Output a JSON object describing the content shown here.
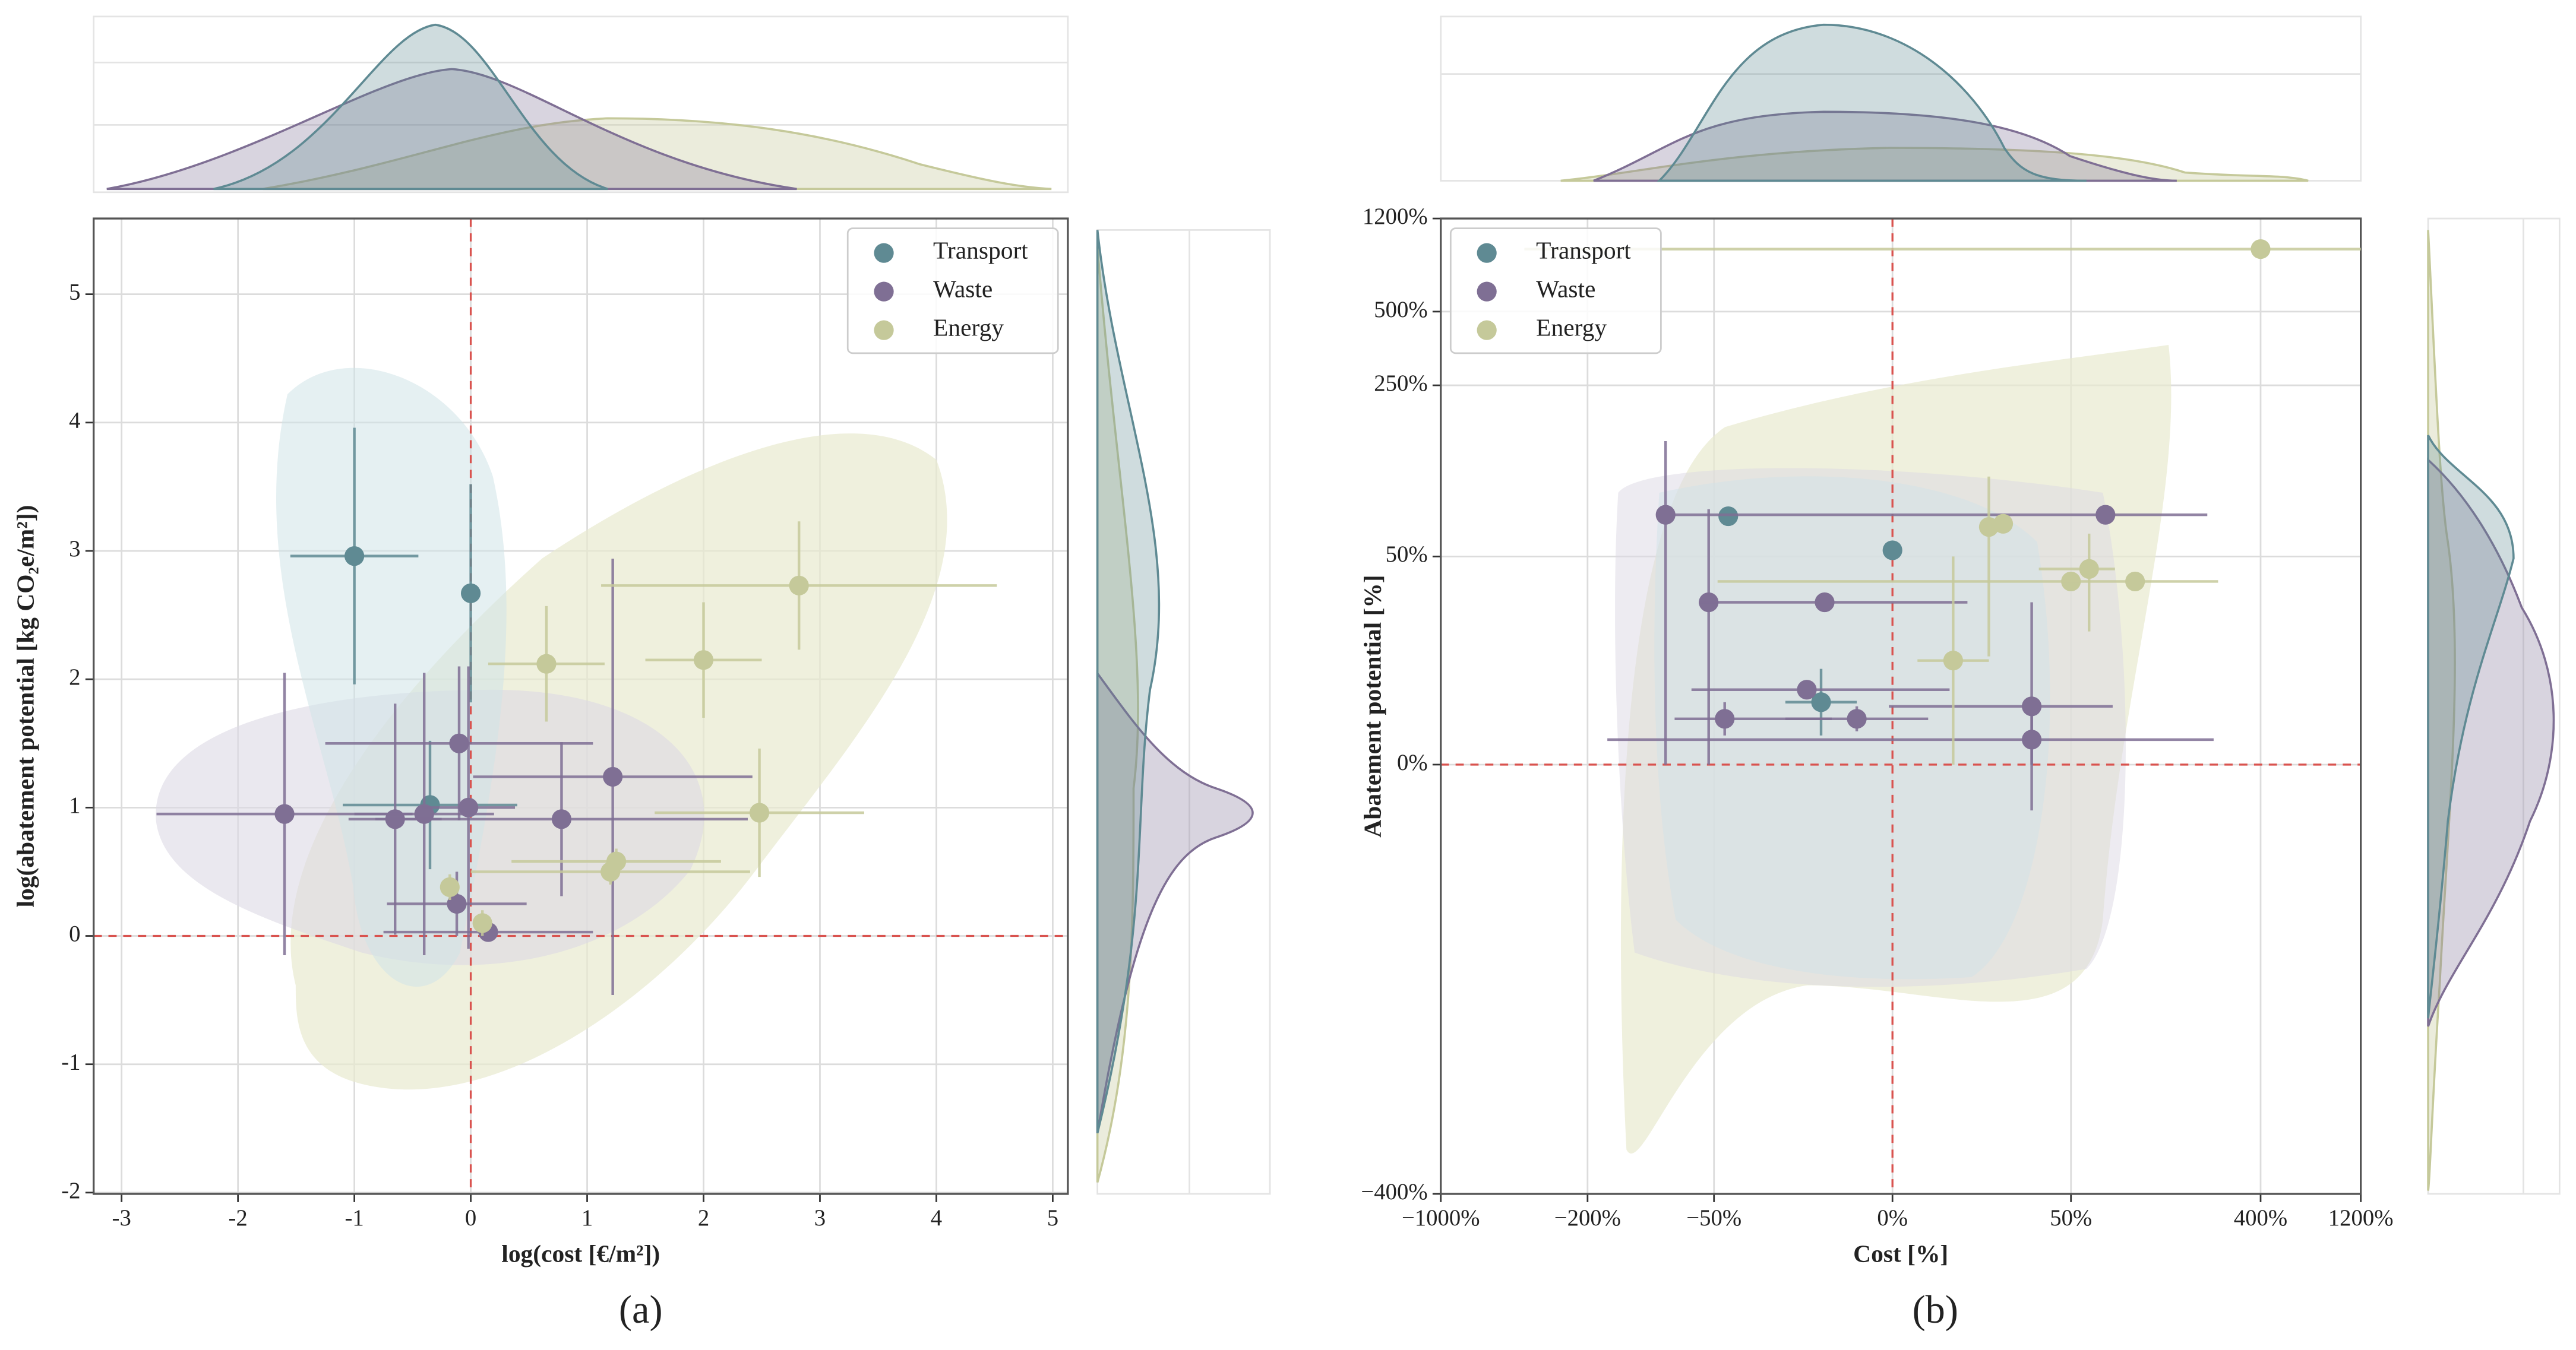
{
  "chart_data": [
    {
      "type": "scatter",
      "label": "(a)",
      "xlabel": "log(cost [€/m²])",
      "ylabel": "log(abatement potential [kg CO₂e/m²])",
      "xlim": [
        -3.24,
        5.13
      ],
      "ylim": [
        -2.01,
        5.59
      ],
      "xticks": [
        -3,
        -2,
        -1,
        0,
        1,
        2,
        3,
        4,
        5
      ],
      "yticks": [
        -2,
        -1,
        0,
        1,
        2,
        3,
        4,
        5
      ],
      "grid": true,
      "legend": "upper right",
      "series": [
        {
          "name": "Transport",
          "color": "#5f8a93",
          "x": [
            -1.0,
            0.0,
            -0.35
          ],
          "values": [
            2.96,
            2.67,
            1.02
          ],
          "xerr": [
            0.55,
            0.05,
            0.75
          ],
          "yerr": [
            1.0,
            0.85,
            0.5
          ]
        },
        {
          "name": "Waste",
          "color": "#7f6f94",
          "x": [
            -1.6,
            -0.65,
            -0.4,
            -0.12,
            -0.1,
            -0.02,
            0.15,
            0.78,
            1.22
          ],
          "values": [
            0.95,
            0.91,
            0.95,
            0.25,
            1.5,
            1.0,
            0.03,
            0.91,
            1.24
          ],
          "xerr": [
            1.1,
            0.4,
            0.6,
            0.6,
            1.15,
            0.4,
            0.9,
            1.6,
            1.2
          ],
          "yerr": [
            1.1,
            0.9,
            1.1,
            0.25,
            0.6,
            1.1,
            0.05,
            0.6,
            1.7
          ]
        },
        {
          "name": "Energy",
          "color": "#c5c99a",
          "x": [
            -0.18,
            0.1,
            0.65,
            1.2,
            1.25,
            2.0,
            2.48,
            2.82
          ],
          "values": [
            0.38,
            0.1,
            2.12,
            0.5,
            0.58,
            2.15,
            0.96,
            2.73
          ],
          "xerr": [
            0.05,
            0.05,
            0.5,
            1.2,
            0.9,
            0.5,
            0.9,
            1.7
          ],
          "yerr": [
            0.1,
            0.1,
            0.45,
            0.1,
            0.1,
            0.45,
            0.5,
            0.5
          ]
        }
      ]
    },
    {
      "type": "scatter",
      "label": "(b)",
      "xlabel": "Cost [%]",
      "ylabel": "Abatement potential [%]",
      "xscale": "symlog",
      "yscale": "symlog",
      "linthresh": 50,
      "xlim": [
        -1000,
        1200
      ],
      "ylim": [
        -400,
        1200
      ],
      "xticks": [
        {
          "value": -1000,
          "label": "−1000%"
        },
        {
          "value": -200,
          "label": "−200%"
        },
        {
          "value": -50,
          "label": "−50%"
        },
        {
          "value": 0,
          "label": "0%"
        },
        {
          "value": 50,
          "label": "50%"
        },
        {
          "value": 400,
          "label": "400%"
        },
        {
          "value": 1200,
          "label": "1200%"
        }
      ],
      "yticks": [
        {
          "value": -400,
          "label": "−400%"
        },
        {
          "value": 0,
          "label": "0%"
        },
        {
          "value": 50,
          "label": "50%"
        },
        {
          "value": 250,
          "label": "250%"
        },
        {
          "value": 500,
          "label": "500%"
        },
        {
          "value": 1200,
          "label": "1200%"
        }
      ],
      "grid": true,
      "legend": "upper left",
      "series": [
        {
          "name": "Transport",
          "color": "#5f8a93",
          "x": [
            -46,
            0,
            -20
          ],
          "values": [
            73,
            53,
            15
          ],
          "xerr": [
            0,
            0,
            10
          ],
          "yerr": [
            0,
            0,
            8
          ]
        },
        {
          "name": "Waste",
          "color": "#7f6f94",
          "x": [
            -85,
            73,
            -53,
            -19,
            -24,
            -47,
            -10,
            39,
            39
          ],
          "values": [
            74,
            74,
            39,
            39,
            18,
            11,
            11,
            14,
            6
          ],
          "xerr": [
            0,
            150,
            0,
            40,
            40,
            30,
            20,
            40,
            200
          ],
          "yerr": [
            74,
            0,
            39,
            0,
            0,
            4,
            3,
            25,
            6
          ]
        },
        {
          "name": "Energy",
          "color": "#c5c99a",
          "x": [
            400,
            27,
            31,
            50,
            61,
            101,
            17
          ],
          "values": [
            900,
            66,
            68,
            44,
            47,
            44,
            25
          ],
          "xerr": [
            800,
            0,
            0,
            0,
            20,
            150,
            10
          ],
          "yerr": [
            0,
            40,
            0,
            0,
            15,
            0,
            25
          ]
        }
      ]
    }
  ]
}
